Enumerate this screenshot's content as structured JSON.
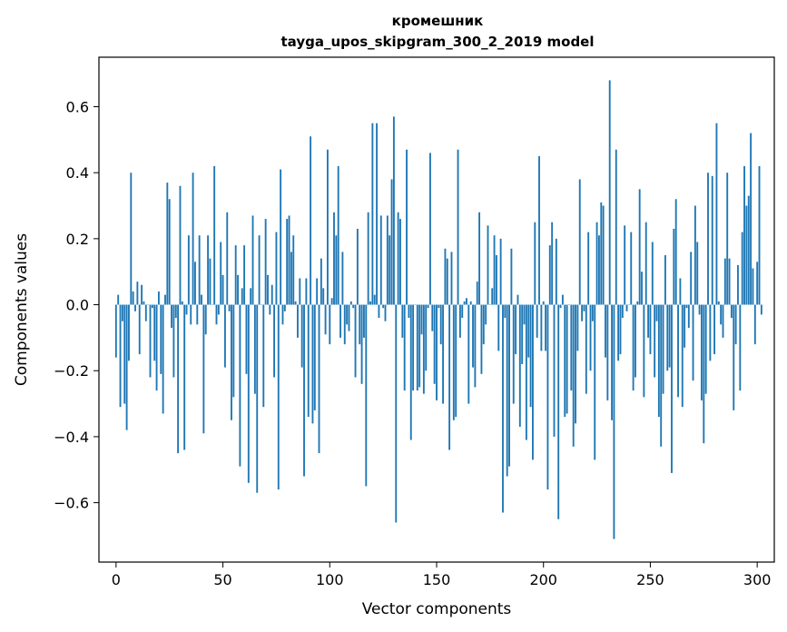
{
  "chart_data": {
    "type": "bar",
    "title": "кромешник",
    "subtitle": "tayga_upos_skipgram_300_2_2019 model",
    "xlabel": "Vector components",
    "ylabel": "Components values",
    "xlim": [
      -8,
      308
    ],
    "ylim": [
      -0.78,
      0.75
    ],
    "xticks": [
      0,
      50,
      100,
      150,
      200,
      250,
      300
    ],
    "yticks": [
      -0.6,
      -0.4,
      -0.2,
      0.0,
      0.2,
      0.4,
      0.6
    ],
    "ytick_labels": [
      "−0.6",
      "−0.4",
      "−0.2",
      "0.0",
      "0.2",
      "0.4",
      "0.6"
    ],
    "bar_color": "#1f77b4",
    "series": [
      {
        "name": "кромешник",
        "values": [
          -0.16,
          0.03,
          -0.31,
          -0.05,
          -0.3,
          -0.38,
          -0.17,
          0.4,
          0.04,
          -0.02,
          0.07,
          -0.15,
          0.06,
          0.01,
          -0.05,
          0.0,
          -0.22,
          -0.01,
          -0.17,
          -0.26,
          0.04,
          -0.21,
          -0.33,
          0.03,
          0.37,
          0.32,
          -0.07,
          -0.22,
          -0.04,
          -0.45,
          0.36,
          0.01,
          -0.44,
          -0.03,
          0.21,
          -0.06,
          0.4,
          0.13,
          -0.06,
          0.21,
          0.03,
          -0.39,
          -0.09,
          0.21,
          0.14,
          0.0,
          0.42,
          -0.06,
          -0.03,
          0.19,
          0.09,
          -0.19,
          0.28,
          -0.02,
          -0.35,
          -0.28,
          0.18,
          0.09,
          -0.49,
          0.05,
          0.18,
          -0.21,
          -0.54,
          0.05,
          0.27,
          -0.27,
          -0.57,
          0.21,
          0.0,
          -0.31,
          0.26,
          0.09,
          -0.03,
          0.06,
          -0.22,
          0.22,
          -0.56,
          0.41,
          -0.06,
          -0.02,
          0.26,
          0.27,
          0.16,
          0.21,
          0.01,
          -0.1,
          0.08,
          -0.19,
          -0.52,
          0.08,
          -0.34,
          0.51,
          -0.36,
          -0.32,
          0.08,
          -0.45,
          0.14,
          0.05,
          -0.09,
          0.47,
          -0.12,
          0.02,
          0.28,
          0.21,
          0.42,
          -0.1,
          0.16,
          -0.12,
          -0.06,
          -0.08,
          0.01,
          -0.01,
          -0.22,
          0.23,
          -0.12,
          -0.24,
          -0.1,
          -0.55,
          0.28,
          0.01,
          0.55,
          0.03,
          0.55,
          -0.04,
          0.27,
          -0.01,
          -0.05,
          0.27,
          0.21,
          0.38,
          0.57,
          -0.66,
          0.28,
          0.26,
          -0.1,
          -0.26,
          0.47,
          -0.04,
          -0.41,
          -0.26,
          0.0,
          -0.26,
          -0.25,
          -0.09,
          -0.27,
          -0.2,
          -0.01,
          0.46,
          -0.08,
          -0.24,
          -0.29,
          -0.01,
          -0.12,
          -0.3,
          0.17,
          0.14,
          -0.44,
          0.16,
          -0.35,
          -0.34,
          0.47,
          -0.1,
          -0.04,
          0.01,
          0.02,
          -0.3,
          0.01,
          -0.19,
          -0.25,
          0.07,
          0.28,
          -0.21,
          -0.12,
          -0.06,
          0.24,
          0.0,
          0.05,
          0.21,
          0.15,
          -0.14,
          0.2,
          -0.63,
          -0.04,
          -0.52,
          -0.49,
          0.17,
          -0.3,
          -0.15,
          0.03,
          -0.37,
          -0.18,
          -0.06,
          -0.41,
          -0.16,
          -0.31,
          -0.47,
          0.25,
          -0.1,
          0.45,
          -0.14,
          0.01,
          -0.14,
          -0.56,
          0.18,
          0.25,
          -0.4,
          0.2,
          -0.65,
          -0.01,
          0.03,
          -0.34,
          -0.33,
          0.0,
          -0.26,
          -0.43,
          -0.36,
          -0.14,
          0.38,
          -0.05,
          -0.02,
          -0.27,
          0.22,
          -0.2,
          -0.05,
          -0.47,
          0.25,
          0.21,
          0.31,
          0.3,
          -0.16,
          -0.29,
          0.68,
          -0.35,
          -0.71,
          0.47,
          -0.17,
          -0.15,
          -0.04,
          0.24,
          -0.02,
          0.0,
          0.22,
          -0.26,
          -0.22,
          0.01,
          0.35,
          0.1,
          -0.28,
          0.25,
          -0.1,
          -0.15,
          0.19,
          -0.22,
          -0.05,
          -0.34,
          -0.43,
          -0.27,
          0.15,
          -0.2,
          -0.19,
          -0.51,
          0.23,
          0.32,
          -0.28,
          0.08,
          -0.31,
          -0.13,
          -0.01,
          -0.07,
          0.16,
          -0.23,
          0.3,
          0.19,
          -0.03,
          -0.29,
          -0.42,
          -0.27,
          0.4,
          -0.17,
          0.39,
          -0.15,
          0.55,
          0.01,
          -0.06,
          -0.1,
          0.14,
          0.4,
          0.14,
          -0.04,
          -0.32,
          -0.12,
          0.12,
          -0.26,
          0.22,
          0.42,
          0.3,
          0.33,
          0.52,
          0.11,
          -0.12,
          0.13,
          0.42,
          -0.03
        ]
      }
    ]
  }
}
